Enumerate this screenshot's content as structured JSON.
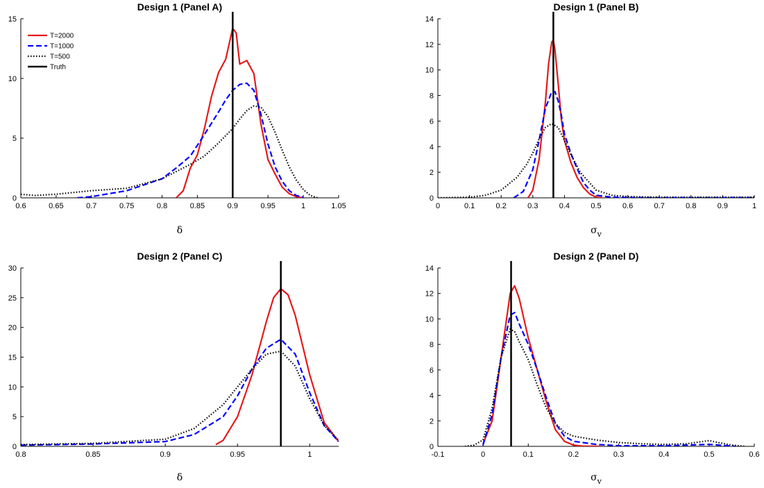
{
  "chart_data": [
    {
      "type": "line",
      "title": "Design 1 (Panel A)",
      "xlabel": "δ",
      "ylabel": "",
      "xlim": [
        0.6,
        1.05
      ],
      "ylim": [
        0,
        15
      ],
      "xticks": [
        "0.6",
        "0.65",
        "0.7",
        "0.75",
        "0.8",
        "0.85",
        "0.9",
        "0.95",
        "1",
        "1.05"
      ],
      "yticks": [
        "0",
        "5",
        "10",
        "15"
      ],
      "truth": 0.9,
      "legend": {
        "position": "top-left",
        "entries": [
          "T=2000",
          "T=1000",
          "T=500",
          "Truth"
        ]
      },
      "series": [
        {
          "name": "T=2000",
          "color": "#e41a1c",
          "style": "solid",
          "x": [
            0.82,
            0.83,
            0.84,
            0.85,
            0.86,
            0.87,
            0.88,
            0.89,
            0.9,
            0.905,
            0.91,
            0.92,
            0.93,
            0.94,
            0.95,
            0.96,
            0.97,
            0.98,
            0.99,
            1.0
          ],
          "y": [
            0,
            0.6,
            2.5,
            3.6,
            5.8,
            8.5,
            10.5,
            11.6,
            14.2,
            13.8,
            11.2,
            11.5,
            10.4,
            6.2,
            3.2,
            2.0,
            0.9,
            0.35,
            0.1,
            0
          ]
        },
        {
          "name": "T=1000",
          "color": "#0000ff",
          "style": "dashed",
          "x": [
            0.68,
            0.7,
            0.75,
            0.8,
            0.82,
            0.84,
            0.86,
            0.88,
            0.89,
            0.9,
            0.91,
            0.92,
            0.93,
            0.94,
            0.95,
            0.96,
            0.97,
            0.98,
            0.99,
            1.0
          ],
          "y": [
            0,
            0.1,
            0.6,
            1.6,
            2.5,
            3.5,
            5.3,
            7.2,
            8.2,
            9.0,
            9.5,
            9.6,
            9.0,
            7.0,
            4.5,
            2.6,
            1.4,
            0.6,
            0.2,
            0.05
          ]
        },
        {
          "name": "T=500",
          "color": "#000000",
          "style": "dotted",
          "x": [
            0.6,
            0.62,
            0.65,
            0.7,
            0.75,
            0.8,
            0.82,
            0.84,
            0.86,
            0.88,
            0.9,
            0.91,
            0.92,
            0.93,
            0.94,
            0.95,
            0.96,
            0.97,
            0.98,
            0.99,
            1.0,
            1.01,
            1.02
          ],
          "y": [
            0.3,
            0.2,
            0.3,
            0.6,
            0.8,
            1.6,
            2.2,
            2.8,
            3.5,
            4.6,
            5.8,
            6.6,
            7.3,
            7.7,
            7.6,
            6.8,
            5.5,
            4.0,
            2.6,
            1.5,
            0.7,
            0.2,
            0
          ]
        },
        {
          "name": "Truth",
          "color": "#000000",
          "style": "truth"
        }
      ]
    },
    {
      "type": "line",
      "title": "Design 1 (Panel B)",
      "xlabel": "σ",
      "xlabel_sub": "v",
      "ylabel": "",
      "xlim": [
        0,
        1
      ],
      "ylim": [
        0,
        14
      ],
      "xticks": [
        "0",
        "0.1",
        "0.2",
        "0.3",
        "0.4",
        "0.5",
        "0.6",
        "0.7",
        "0.8",
        "0.9",
        "1"
      ],
      "yticks": [
        "0",
        "2",
        "4",
        "6",
        "8",
        "10",
        "12",
        "14"
      ],
      "truth": 0.365,
      "series": [
        {
          "name": "T=2000",
          "color": "#e41a1c",
          "style": "solid",
          "x": [
            0.285,
            0.3,
            0.32,
            0.34,
            0.35,
            0.36,
            0.365,
            0.37,
            0.38,
            0.39,
            0.4,
            0.42,
            0.44,
            0.46,
            0.48,
            0.5,
            0.52
          ],
          "y": [
            0,
            0.6,
            3.0,
            7.5,
            10.5,
            12.2,
            12.3,
            11.6,
            9.0,
            6.2,
            4.5,
            2.8,
            1.6,
            0.8,
            0.3,
            0.05,
            0
          ]
        },
        {
          "name": "T=1000",
          "color": "#0000ff",
          "style": "dashed",
          "x": [
            0.24,
            0.27,
            0.3,
            0.32,
            0.34,
            0.36,
            0.37,
            0.38,
            0.39,
            0.4,
            0.42,
            0.44,
            0.46,
            0.48,
            0.5,
            0.55,
            0.6,
            0.8,
            1.0
          ],
          "y": [
            0,
            0.5,
            2.2,
            4.5,
            7.0,
            8.3,
            8.3,
            7.6,
            6.5,
            5.0,
            3.5,
            2.3,
            1.2,
            0.6,
            0.2,
            0.05,
            0.02,
            0.01,
            0.02
          ]
        },
        {
          "name": "T=500",
          "color": "#000000",
          "style": "dotted",
          "x": [
            0.0,
            0.1,
            0.15,
            0.2,
            0.25,
            0.28,
            0.3,
            0.32,
            0.34,
            0.36,
            0.38,
            0.4,
            0.42,
            0.45,
            0.5,
            0.55,
            0.6,
            0.7,
            0.8,
            1.0
          ],
          "y": [
            0,
            0.05,
            0.2,
            0.6,
            1.6,
            2.6,
            3.5,
            4.6,
            5.5,
            5.8,
            5.5,
            4.5,
            3.4,
            2.0,
            0.6,
            0.2,
            0.1,
            0.05,
            0.05,
            0.05
          ]
        },
        {
          "name": "Truth",
          "color": "#000000",
          "style": "truth"
        }
      ]
    },
    {
      "type": "line",
      "title": "Design 2 (Panel C)",
      "xlabel": "δ",
      "ylabel": "",
      "xlim": [
        0.8,
        1.02
      ],
      "ylim": [
        0,
        30
      ],
      "xticks": [
        "0.8",
        "0.85",
        "0.9",
        "0.95",
        "1"
      ],
      "yticks": [
        "0",
        "5",
        "10",
        "15",
        "20",
        "25",
        "30"
      ],
      "truth": 0.98,
      "series": [
        {
          "name": "T=2000",
          "color": "#e41a1c",
          "style": "solid",
          "x": [
            0.935,
            0.94,
            0.95,
            0.96,
            0.97,
            0.975,
            0.98,
            0.985,
            0.99,
            1.0,
            1.01,
            1.02
          ],
          "y": [
            0.3,
            1.0,
            5.0,
            12.0,
            21.0,
            25.0,
            26.5,
            25.5,
            22.0,
            12.0,
            4.0,
            0.8
          ]
        },
        {
          "name": "T=1000",
          "color": "#0000ff",
          "style": "dashed",
          "x": [
            0.8,
            0.85,
            0.9,
            0.92,
            0.94,
            0.95,
            0.96,
            0.97,
            0.98,
            0.99,
            1.0,
            1.01,
            1.02
          ],
          "y": [
            0.2,
            0.4,
            0.8,
            2.0,
            5.0,
            8.5,
            13.0,
            16.5,
            18.0,
            15.5,
            9.0,
            3.5,
            0.8
          ]
        },
        {
          "name": "T=500",
          "color": "#000000",
          "style": "dotted",
          "x": [
            0.8,
            0.85,
            0.9,
            0.92,
            0.94,
            0.95,
            0.96,
            0.97,
            0.98,
            0.99,
            1.0,
            1.01,
            1.02
          ],
          "y": [
            0.3,
            0.5,
            1.2,
            3.0,
            7.0,
            10.0,
            13.0,
            15.5,
            16.0,
            13.5,
            8.0,
            3.5,
            1.0
          ]
        },
        {
          "name": "Truth",
          "color": "#000000",
          "style": "truth"
        }
      ]
    },
    {
      "type": "line",
      "title": "Design 2 (Panel D)",
      "xlabel": "σ",
      "xlabel_sub": "v",
      "ylabel": "",
      "xlim": [
        -0.1,
        0.6
      ],
      "ylim": [
        0,
        14
      ],
      "xticks": [
        "-0.1",
        "0",
        "0.1",
        "0.2",
        "0.3",
        "0.4",
        "0.5",
        "0.6"
      ],
      "yticks": [
        "0",
        "2",
        "4",
        "6",
        "8",
        "10",
        "12",
        "14"
      ],
      "truth": 0.062,
      "series": [
        {
          "name": "T=2000",
          "color": "#e41a1c",
          "style": "solid",
          "x": [
            0.0,
            0.02,
            0.04,
            0.06,
            0.07,
            0.08,
            0.1,
            0.12,
            0.14,
            0.16,
            0.18,
            0.2,
            0.22,
            0.26
          ],
          "y": [
            0.2,
            2.0,
            7.0,
            12.0,
            12.6,
            11.6,
            8.5,
            6.0,
            3.5,
            1.3,
            0.4,
            0.1,
            0.02,
            0
          ]
        },
        {
          "name": "T=1000",
          "color": "#0000ff",
          "style": "dashed",
          "x": [
            0.0,
            0.02,
            0.04,
            0.06,
            0.07,
            0.08,
            0.1,
            0.12,
            0.14,
            0.16,
            0.18,
            0.2,
            0.25,
            0.3,
            0.4,
            0.5,
            0.56
          ],
          "y": [
            0.1,
            2.5,
            7.0,
            10.3,
            10.5,
            9.6,
            8.0,
            6.0,
            3.8,
            1.8,
            0.8,
            0.4,
            0.15,
            0.05,
            0.05,
            0.15,
            0
          ]
        },
        {
          "name": "T=500",
          "color": "#000000",
          "style": "dotted",
          "x": [
            -0.04,
            -0.02,
            0.0,
            0.02,
            0.04,
            0.06,
            0.07,
            0.08,
            0.1,
            0.12,
            0.14,
            0.16,
            0.18,
            0.2,
            0.25,
            0.3,
            0.35,
            0.4,
            0.45,
            0.48,
            0.5,
            0.52,
            0.55,
            0.58
          ],
          "y": [
            0,
            0.1,
            0.5,
            3.0,
            7.0,
            9.2,
            9.0,
            8.2,
            6.8,
            4.8,
            3.0,
            1.8,
            1.1,
            0.8,
            0.5,
            0.3,
            0.2,
            0.15,
            0.2,
            0.35,
            0.45,
            0.3,
            0.1,
            0
          ]
        },
        {
          "name": "Truth",
          "color": "#000000",
          "style": "truth"
        }
      ]
    }
  ]
}
